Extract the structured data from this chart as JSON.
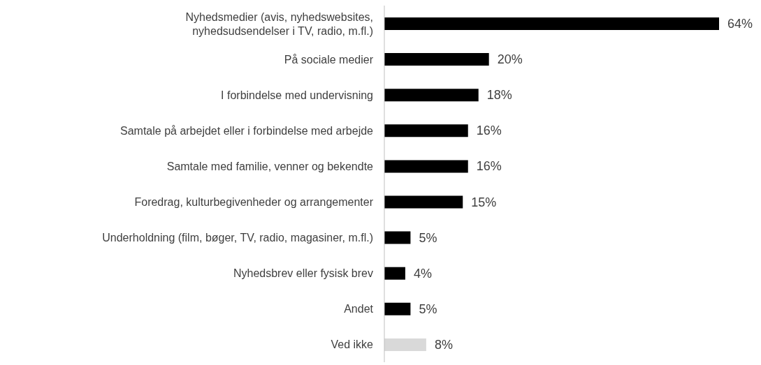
{
  "chart_data": {
    "type": "bar",
    "orientation": "horizontal",
    "categories": [
      "Nyhedsmedier (avis, nyhedswebsites,\nnyhedsudsendelser i TV, radio, m.fl.)",
      "På sociale medier",
      "I forbindelse med undervisning",
      "Samtale på arbejdet eller i forbindelse med arbejde",
      "Samtale med familie, venner og bekendte",
      "Foredrag, kulturbegivenheder og arrangementer",
      "Underholdning (film, bøger, TV, radio, magasiner, m.fl.)",
      "Nyhedsbrev eller fysisk brev",
      "Andet",
      "Ved ikke"
    ],
    "values": [
      64,
      20,
      18,
      16,
      16,
      15,
      5,
      4,
      5,
      8
    ],
    "colors": [
      "#000000",
      "#000000",
      "#000000",
      "#000000",
      "#000000",
      "#000000",
      "#000000",
      "#000000",
      "#000000",
      "#d9d9d9"
    ],
    "value_labels": [
      "64%",
      "20%",
      "18%",
      "16%",
      "16%",
      "15%",
      "5%",
      "4%",
      "5%",
      "8%"
    ],
    "grid": false,
    "legend": false
  }
}
